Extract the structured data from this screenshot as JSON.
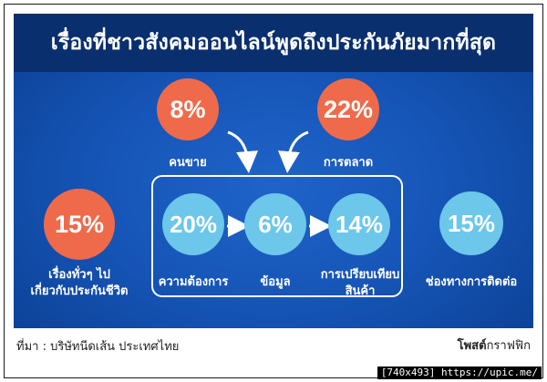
{
  "title": "เรื่องที่ชาวสังคมออนไลน์พูดถึงประกันภัยมากที่สุด",
  "top": [
    {
      "value": "8%",
      "label": "คนขาย"
    },
    {
      "value": "22%",
      "label": "การตลาด"
    }
  ],
  "middle": [
    {
      "value": "15%",
      "label_lines": [
        "เรื่องทั่วๆ ไป",
        "เกี่ยวกับประกันชีวิต"
      ]
    },
    {
      "value": "20%",
      "label_lines": [
        "ความต้องการ"
      ]
    },
    {
      "value": "6%",
      "label_lines": [
        "ข้อมูล"
      ]
    },
    {
      "value": "14%",
      "label_lines": [
        "การเปรียบเทียบ",
        "สินค้า"
      ]
    },
    {
      "value": "15%",
      "label_lines": [
        "ช่องทางการติดต่อ"
      ]
    }
  ],
  "footer": {
    "source": "ที่มา : บริษัทนีดเส้น ประเทศไทย",
    "brand": "โพสต์",
    "brand_suffix": "กราฟฟิก"
  },
  "watermark": "[740x493] https://upic.me/",
  "colors": {
    "panel": "#1656b8",
    "title_bar": "#0a2f6e",
    "orange": "#ef6a4a",
    "light_blue": "#6cc7ea",
    "text": "#ffffff"
  }
}
